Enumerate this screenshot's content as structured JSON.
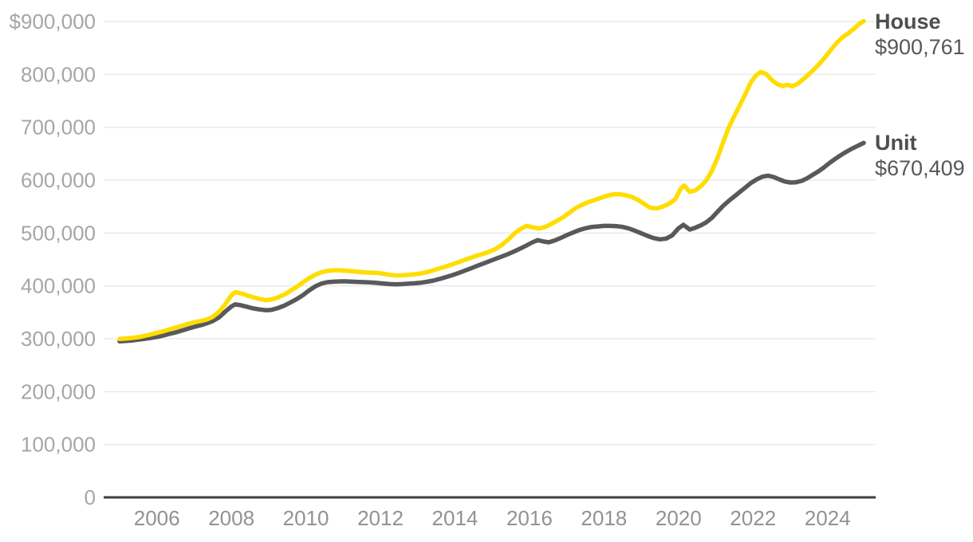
{
  "chart_data": {
    "type": "line",
    "title": "",
    "xlabel": "",
    "ylabel": "",
    "currency": "$",
    "x_range": [
      2005.0,
      2025.05
    ],
    "y_range": [
      0,
      900000
    ],
    "grid": true,
    "legend_position": "end-of-line-right",
    "colors": {
      "house_line": "#FFDD00",
      "unit_line": "#58595B",
      "axis_line": "#3e3f41",
      "gridline": "#eaeaea",
      "y_tick_text": "#a6a6a6",
      "x_tick_text": "#929292",
      "end_label_text": "#56575a"
    },
    "y_ticks": [
      {
        "label": "$900,000",
        "value": 900000
      },
      {
        "label": "800,000",
        "value": 800000
      },
      {
        "label": "700,000",
        "value": 700000
      },
      {
        "label": "600,000",
        "value": 600000
      },
      {
        "label": "500,000",
        "value": 500000
      },
      {
        "label": "400,000",
        "value": 400000
      },
      {
        "label": "300,000",
        "value": 300000
      },
      {
        "label": "200,000",
        "value": 200000
      },
      {
        "label": "100,000",
        "value": 100000
      },
      {
        "label": "0",
        "value": 0
      }
    ],
    "x_ticks": [
      {
        "label": "2006",
        "year": 2006
      },
      {
        "label": "2008",
        "year": 2008
      },
      {
        "label": "2010",
        "year": 2010
      },
      {
        "label": "2012",
        "year": 2012
      },
      {
        "label": "2014",
        "year": 2014
      },
      {
        "label": "2016",
        "year": 2016
      },
      {
        "label": "2018",
        "year": 2018
      },
      {
        "label": "2020",
        "year": 2020
      },
      {
        "label": "2022",
        "year": 2022
      },
      {
        "label": "2024",
        "year": 2024
      }
    ],
    "series": [
      {
        "name": "House",
        "end_value": 900761,
        "end_value_label": "$900,761",
        "color": "#FFDD00",
        "points": [
          [
            2005.0,
            299500
          ],
          [
            2005.17,
            300500
          ],
          [
            2005.33,
            301500
          ],
          [
            2005.5,
            303000
          ],
          [
            2005.67,
            305500
          ],
          [
            2005.83,
            308000
          ],
          [
            2006.0,
            311000
          ],
          [
            2006.17,
            314000
          ],
          [
            2006.33,
            317500
          ],
          [
            2006.5,
            321000
          ],
          [
            2006.67,
            324500
          ],
          [
            2006.83,
            328000
          ],
          [
            2007.0,
            331000
          ],
          [
            2007.17,
            333500
          ],
          [
            2007.33,
            336000
          ],
          [
            2007.5,
            341500
          ],
          [
            2007.67,
            351000
          ],
          [
            2007.83,
            365000
          ],
          [
            2008.0,
            382000
          ],
          [
            2008.1,
            388000
          ],
          [
            2008.25,
            386000
          ],
          [
            2008.42,
            382000
          ],
          [
            2008.58,
            378500
          ],
          [
            2008.75,
            375500
          ],
          [
            2008.92,
            373000
          ],
          [
            2009.08,
            374500
          ],
          [
            2009.25,
            378000
          ],
          [
            2009.42,
            383500
          ],
          [
            2009.58,
            390500
          ],
          [
            2009.75,
            398000
          ],
          [
            2009.92,
            406500
          ],
          [
            2010.08,
            414500
          ],
          [
            2010.25,
            421000
          ],
          [
            2010.42,
            426000
          ],
          [
            2010.58,
            428500
          ],
          [
            2010.75,
            429500
          ],
          [
            2010.92,
            429500
          ],
          [
            2011.08,
            428500
          ],
          [
            2011.25,
            427500
          ],
          [
            2011.42,
            426500
          ],
          [
            2011.58,
            425500
          ],
          [
            2011.75,
            425000
          ],
          [
            2011.92,
            424500
          ],
          [
            2012.08,
            423000
          ],
          [
            2012.25,
            421000
          ],
          [
            2012.42,
            419500
          ],
          [
            2012.58,
            420000
          ],
          [
            2012.75,
            421000
          ],
          [
            2012.92,
            422000
          ],
          [
            2013.08,
            423500
          ],
          [
            2013.25,
            426000
          ],
          [
            2013.42,
            429500
          ],
          [
            2013.58,
            433000
          ],
          [
            2013.75,
            436500
          ],
          [
            2013.92,
            440500
          ],
          [
            2014.08,
            444500
          ],
          [
            2014.25,
            449000
          ],
          [
            2014.42,
            453000
          ],
          [
            2014.58,
            457000
          ],
          [
            2014.75,
            460500
          ],
          [
            2014.92,
            464500
          ],
          [
            2015.08,
            469500
          ],
          [
            2015.25,
            477000
          ],
          [
            2015.42,
            487000
          ],
          [
            2015.58,
            498000
          ],
          [
            2015.75,
            507500
          ],
          [
            2015.92,
            513500
          ],
          [
            2016.08,
            511000
          ],
          [
            2016.25,
            508500
          ],
          [
            2016.42,
            511500
          ],
          [
            2016.58,
            517000
          ],
          [
            2016.75,
            523500
          ],
          [
            2016.92,
            530500
          ],
          [
            2017.08,
            539000
          ],
          [
            2017.25,
            547500
          ],
          [
            2017.42,
            553500
          ],
          [
            2017.58,
            558500
          ],
          [
            2017.75,
            562500
          ],
          [
            2017.92,
            566500
          ],
          [
            2018.08,
            570500
          ],
          [
            2018.25,
            573000
          ],
          [
            2018.42,
            573500
          ],
          [
            2018.58,
            571500
          ],
          [
            2018.75,
            568000
          ],
          [
            2018.92,
            562500
          ],
          [
            2019.08,
            555000
          ],
          [
            2019.25,
            547500
          ],
          [
            2019.42,
            546500
          ],
          [
            2019.58,
            550000
          ],
          [
            2019.75,
            555500
          ],
          [
            2019.92,
            564500
          ],
          [
            2020.05,
            583000
          ],
          [
            2020.15,
            590000
          ],
          [
            2020.3,
            578000
          ],
          [
            2020.45,
            580500
          ],
          [
            2020.6,
            588500
          ],
          [
            2020.75,
            600000
          ],
          [
            2020.9,
            618000
          ],
          [
            2021.05,
            643000
          ],
          [
            2021.2,
            672000
          ],
          [
            2021.35,
            700000
          ],
          [
            2021.5,
            722000
          ],
          [
            2021.65,
            742500
          ],
          [
            2021.8,
            764000
          ],
          [
            2021.95,
            786000
          ],
          [
            2022.1,
            799500
          ],
          [
            2022.2,
            804500
          ],
          [
            2022.35,
            801000
          ],
          [
            2022.5,
            789500
          ],
          [
            2022.65,
            781500
          ],
          [
            2022.8,
            778000
          ],
          [
            2022.92,
            780500
          ],
          [
            2023.05,
            777500
          ],
          [
            2023.2,
            782500
          ],
          [
            2023.35,
            791000
          ],
          [
            2023.5,
            800500
          ],
          [
            2023.65,
            810500
          ],
          [
            2023.8,
            821500
          ],
          [
            2023.95,
            834000
          ],
          [
            2024.1,
            847500
          ],
          [
            2024.25,
            860000
          ],
          [
            2024.4,
            870000
          ],
          [
            2024.55,
            877500
          ],
          [
            2024.7,
            886000
          ],
          [
            2024.85,
            895500
          ],
          [
            2024.97,
            900761
          ]
        ]
      },
      {
        "name": "Unit",
        "end_value": 670409,
        "end_value_label": "$670,409",
        "color": "#58595B",
        "points": [
          [
            2005.0,
            295000
          ],
          [
            2005.17,
            295800
          ],
          [
            2005.33,
            296800
          ],
          [
            2005.5,
            298200
          ],
          [
            2005.67,
            299800
          ],
          [
            2005.83,
            301500
          ],
          [
            2006.0,
            303500
          ],
          [
            2006.17,
            306000
          ],
          [
            2006.33,
            309000
          ],
          [
            2006.5,
            312000
          ],
          [
            2006.67,
            315500
          ],
          [
            2006.83,
            319000
          ],
          [
            2007.0,
            322500
          ],
          [
            2007.17,
            325500
          ],
          [
            2007.33,
            329000
          ],
          [
            2007.5,
            333500
          ],
          [
            2007.67,
            340500
          ],
          [
            2007.83,
            351000
          ],
          [
            2008.0,
            361000
          ],
          [
            2008.1,
            365000
          ],
          [
            2008.25,
            363500
          ],
          [
            2008.42,
            360500
          ],
          [
            2008.58,
            357500
          ],
          [
            2008.75,
            355500
          ],
          [
            2008.92,
            354000
          ],
          [
            2009.08,
            354800
          ],
          [
            2009.25,
            358000
          ],
          [
            2009.42,
            362800
          ],
          [
            2009.58,
            368500
          ],
          [
            2009.75,
            375000
          ],
          [
            2009.92,
            382500
          ],
          [
            2010.08,
            391000
          ],
          [
            2010.25,
            399000
          ],
          [
            2010.42,
            404500
          ],
          [
            2010.58,
            407000
          ],
          [
            2010.75,
            408000
          ],
          [
            2010.92,
            408500
          ],
          [
            2011.08,
            408500
          ],
          [
            2011.25,
            408000
          ],
          [
            2011.42,
            407500
          ],
          [
            2011.58,
            407000
          ],
          [
            2011.75,
            406500
          ],
          [
            2011.92,
            405500
          ],
          [
            2012.08,
            404500
          ],
          [
            2012.25,
            403500
          ],
          [
            2012.42,
            403000
          ],
          [
            2012.58,
            403500
          ],
          [
            2012.75,
            404200
          ],
          [
            2012.92,
            405000
          ],
          [
            2013.08,
            406000
          ],
          [
            2013.25,
            407800
          ],
          [
            2013.42,
            410000
          ],
          [
            2013.58,
            413000
          ],
          [
            2013.75,
            416500
          ],
          [
            2013.92,
            420000
          ],
          [
            2014.08,
            424000
          ],
          [
            2014.25,
            428500
          ],
          [
            2014.42,
            433000
          ],
          [
            2014.58,
            437500
          ],
          [
            2014.75,
            442000
          ],
          [
            2014.92,
            446500
          ],
          [
            2015.08,
            451000
          ],
          [
            2015.25,
            455500
          ],
          [
            2015.42,
            460000
          ],
          [
            2015.58,
            465000
          ],
          [
            2015.75,
            470500
          ],
          [
            2015.92,
            476500
          ],
          [
            2016.08,
            482500
          ],
          [
            2016.22,
            486500
          ],
          [
            2016.38,
            484000
          ],
          [
            2016.52,
            482500
          ],
          [
            2016.68,
            486000
          ],
          [
            2016.85,
            491000
          ],
          [
            2017.0,
            496000
          ],
          [
            2017.17,
            501000
          ],
          [
            2017.33,
            505500
          ],
          [
            2017.5,
            509000
          ],
          [
            2017.67,
            511500
          ],
          [
            2017.83,
            512500
          ],
          [
            2018.0,
            513500
          ],
          [
            2018.17,
            513500
          ],
          [
            2018.33,
            513000
          ],
          [
            2018.5,
            511500
          ],
          [
            2018.67,
            508500
          ],
          [
            2018.83,
            504500
          ],
          [
            2019.0,
            499500
          ],
          [
            2019.17,
            494500
          ],
          [
            2019.33,
            490500
          ],
          [
            2019.5,
            488000
          ],
          [
            2019.67,
            489500
          ],
          [
            2019.83,
            495500
          ],
          [
            2020.0,
            509000
          ],
          [
            2020.13,
            515500
          ],
          [
            2020.3,
            506500
          ],
          [
            2020.45,
            510000
          ],
          [
            2020.6,
            514500
          ],
          [
            2020.75,
            520500
          ],
          [
            2020.9,
            529000
          ],
          [
            2021.05,
            540500
          ],
          [
            2021.2,
            551500
          ],
          [
            2021.35,
            561000
          ],
          [
            2021.5,
            569500
          ],
          [
            2021.65,
            578000
          ],
          [
            2021.8,
            586500
          ],
          [
            2021.95,
            595000
          ],
          [
            2022.1,
            601500
          ],
          [
            2022.25,
            606500
          ],
          [
            2022.4,
            608500
          ],
          [
            2022.55,
            606000
          ],
          [
            2022.7,
            601500
          ],
          [
            2022.85,
            597500
          ],
          [
            2023.0,
            595500
          ],
          [
            2023.15,
            596000
          ],
          [
            2023.3,
            598500
          ],
          [
            2023.45,
            603500
          ],
          [
            2023.6,
            610000
          ],
          [
            2023.75,
            616500
          ],
          [
            2023.9,
            624000
          ],
          [
            2024.05,
            632500
          ],
          [
            2024.2,
            640000
          ],
          [
            2024.35,
            647000
          ],
          [
            2024.5,
            653500
          ],
          [
            2024.65,
            659500
          ],
          [
            2024.8,
            664500
          ],
          [
            2024.9,
            668000
          ],
          [
            2024.97,
            670409
          ]
        ]
      }
    ]
  }
}
